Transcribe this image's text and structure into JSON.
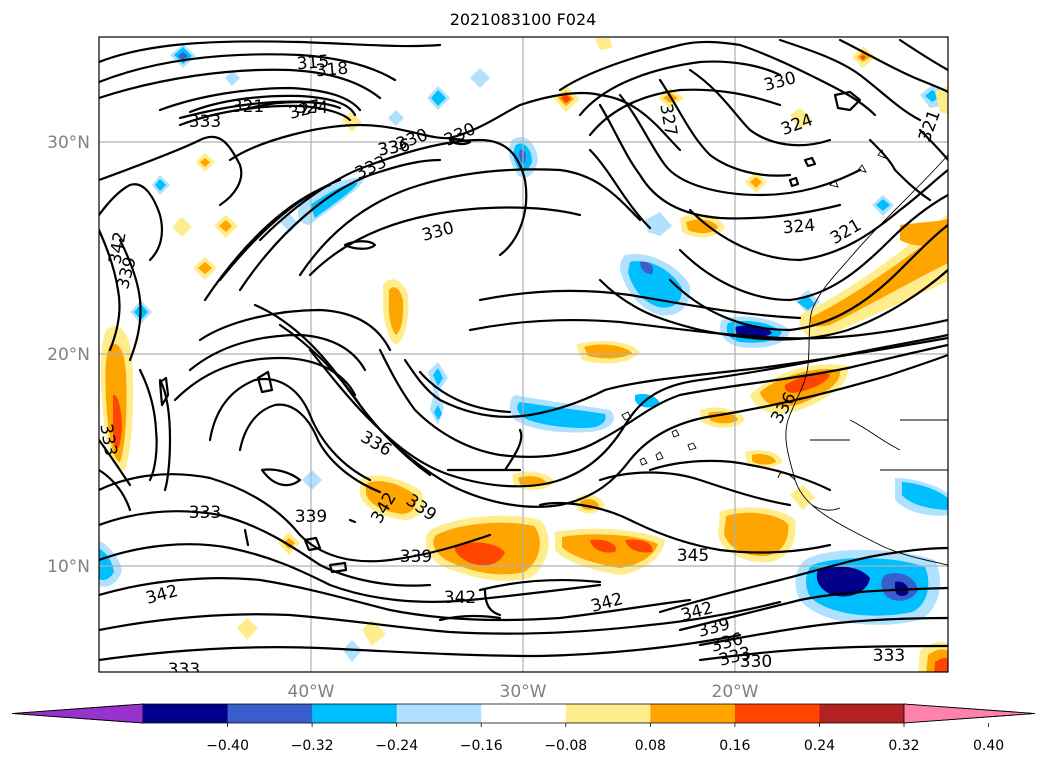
{
  "title": "2021083100 F024",
  "map": {
    "lat_labels": [
      "30°N",
      "20°N",
      "10°N"
    ],
    "lon_labels": [
      "40°W",
      "30°W",
      "20°W"
    ],
    "extent": {
      "lon_min": -50,
      "lon_max": -10,
      "lat_min": 5,
      "lat_max": 35
    },
    "contour_labels": [
      "315",
      "318",
      "321",
      "324",
      "327",
      "330",
      "333",
      "336",
      "339",
      "342",
      "345"
    ],
    "placed_labels": [
      {
        "text": "315"
      },
      {
        "text": "318"
      },
      {
        "text": "321"
      },
      {
        "text": "324"
      },
      {
        "text": "330"
      },
      {
        "text": "336"
      },
      {
        "text": "333"
      },
      {
        "text": "330"
      },
      {
        "text": "336"
      },
      {
        "text": "333"
      },
      {
        "text": "330"
      },
      {
        "text": "327"
      },
      {
        "text": "324"
      },
      {
        "text": "330"
      },
      {
        "text": "324"
      },
      {
        "text": "321"
      },
      {
        "text": "321"
      },
      {
        "text": "342"
      },
      {
        "text": "339"
      },
      {
        "text": "336"
      },
      {
        "text": "336"
      },
      {
        "text": "333"
      },
      {
        "text": "339"
      },
      {
        "text": "342"
      },
      {
        "text": "339"
      },
      {
        "text": "339"
      },
      {
        "text": "342"
      },
      {
        "text": "342"
      },
      {
        "text": "345"
      },
      {
        "text": "342"
      },
      {
        "text": "339"
      },
      {
        "text": "336"
      },
      {
        "text": "333"
      },
      {
        "text": "330"
      },
      {
        "text": "333"
      },
      {
        "text": "342"
      },
      {
        "text": "333"
      },
      {
        "text": "333"
      },
      {
        "text": "327"
      }
    ]
  },
  "colorbar": {
    "ticks": [
      "−0.40",
      "−0.32",
      "−0.24",
      "−0.16",
      "−0.08",
      "0.08",
      "0.16",
      "0.24",
      "0.32",
      "0.40"
    ],
    "colors": [
      "#9932cc",
      "#00008b",
      "#3a5fcd",
      "#00bfff",
      "#b0e2ff",
      "#ffffff",
      "#ffec8b",
      "#ffa500",
      "#ff4500",
      "#b22222",
      "#ff82ab"
    ]
  }
}
